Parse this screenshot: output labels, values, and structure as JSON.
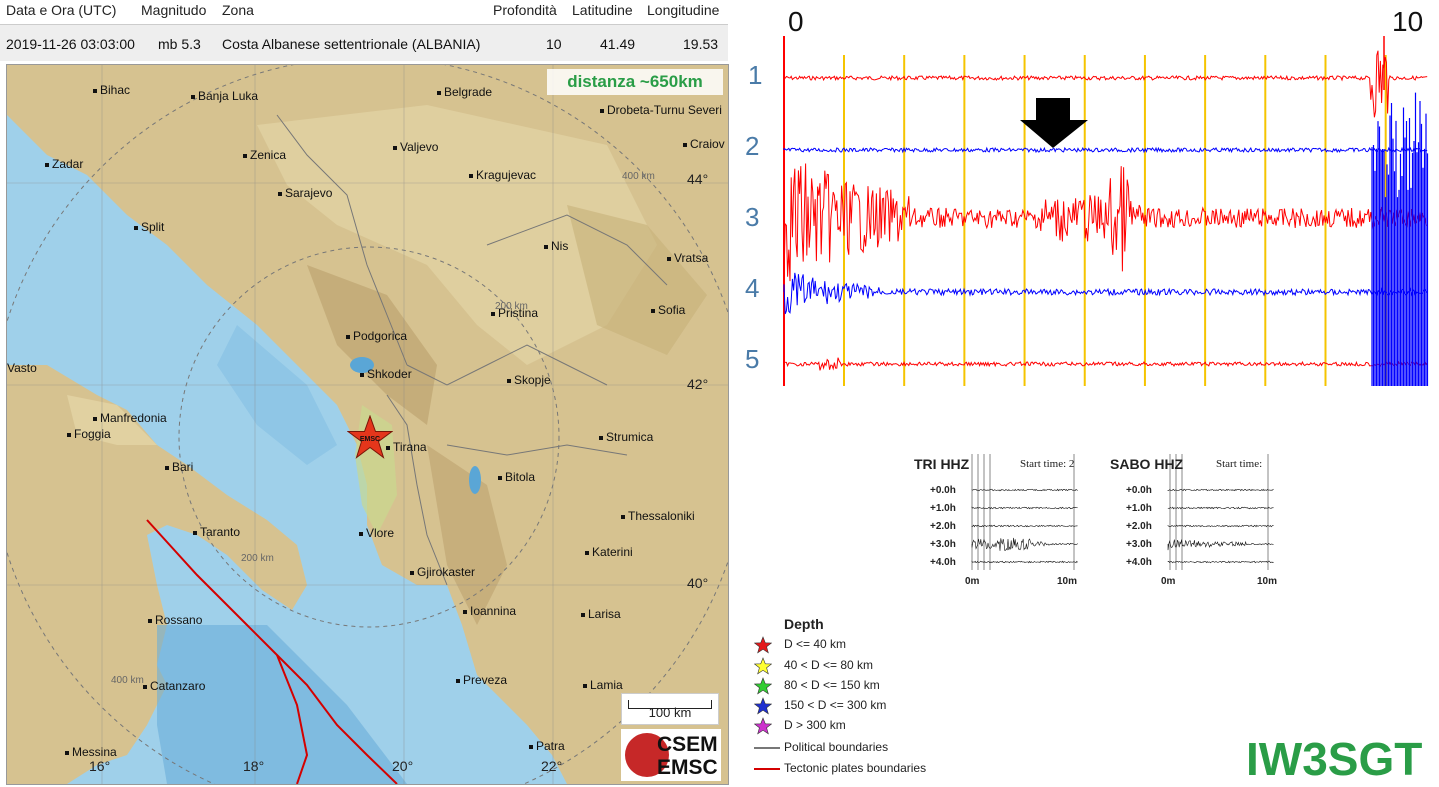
{
  "event_table": {
    "headers": [
      "Data e Ora (UTC)",
      "Magnitudo",
      "Zona",
      "Profondità",
      "Latitudine",
      "Longitudine"
    ],
    "row": {
      "datetime": "2019-11-26 03:03:00",
      "magnitude": "mb 5.3",
      "zone": "Costa Albanese settentrionale (ALBANIA)",
      "depth": "10",
      "latitude": "41.49",
      "longitude": "19.53"
    }
  },
  "map": {
    "distance_label": "distanza ~650km",
    "epicenter_label": "EMSC",
    "scale_label": "100 km",
    "logo_top": "CSEM",
    "logo_bottom": "EMSC",
    "cities": [
      "Bihac",
      "Banja Luka",
      "Belgrade",
      "Drobeta-Turnu Severi",
      "Craiov",
      "Zadar",
      "Zenica",
      "Valjevo",
      "Sarajevo",
      "Kragujevac",
      "Split",
      "Nis",
      "Vratsa",
      "Pristina",
      "Sofia",
      "Podgorica",
      "Vasto",
      "Shkoder",
      "Skopje",
      "Manfredonia",
      "Foggia",
      "Tirana",
      "Strumica",
      "Bari",
      "Bitola",
      "Taranto",
      "Thessaloniki",
      "Vlore",
      "Katerini",
      "Gjirokaster",
      "Rossano",
      "Ioannina",
      "Larisa",
      "Catanzaro",
      "Preveza",
      "Lamia",
      "Messina",
      "Patra"
    ],
    "latitudes": [
      "44°",
      "42°",
      "40°"
    ],
    "longitudes": [
      "16°",
      "18°",
      "20°",
      "22°"
    ],
    "rings": [
      "400 km",
      "200 km",
      "200 km",
      "400 km"
    ],
    "colors": {
      "land": "#d8c79a",
      "sea": "#9fd0ea",
      "plate": "#d40000"
    }
  },
  "seismogram": {
    "start_label": "0",
    "end_label": "10",
    "traces": [
      "1",
      "2",
      "3",
      "4",
      "5"
    ],
    "colors": {
      "red": "#ff0000",
      "blue": "#0000ff",
      "grid": "#f5c400"
    }
  },
  "helicorders": [
    {
      "name": "TRI HHZ",
      "start_time": "Start time: 2",
      "hours": [
        "+0.0h",
        "+1.0h",
        "+2.0h",
        "+3.0h",
        "+4.0h"
      ],
      "x_start": "0m",
      "x_end": "10m"
    },
    {
      "name": "SABO HHZ",
      "start_time": "Start time:",
      "hours": [
        "+0.0h",
        "+1.0h",
        "+2.0h",
        "+3.0h",
        "+4.0h"
      ],
      "x_start": "0m",
      "x_end": "10m"
    }
  ],
  "legend": {
    "title": "Depth",
    "items": [
      {
        "label": "D <= 40 km",
        "color": "#e41a1c"
      },
      {
        "label": "40 < D <= 80 km",
        "color": "#ffff33"
      },
      {
        "label": "80 < D <= 150 km",
        "color": "#33cc33"
      },
      {
        "label": "150 < D <= 300 km",
        "color": "#1f2fd0"
      },
      {
        "label": "D > 300 km",
        "color": "#cc33cc"
      }
    ],
    "lines": [
      {
        "label": "Political boundaries",
        "color": "#777777"
      },
      {
        "label": "Tectonic plates boundaries",
        "color": "#d40000"
      }
    ]
  },
  "callsign": "IW3SGT"
}
